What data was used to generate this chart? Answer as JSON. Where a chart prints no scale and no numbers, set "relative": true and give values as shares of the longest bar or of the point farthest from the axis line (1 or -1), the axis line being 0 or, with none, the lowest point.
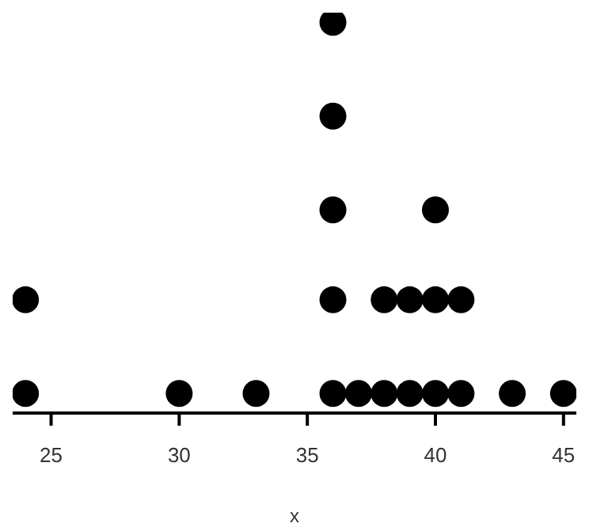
{
  "chart_data": {
    "type": "scatter",
    "xlabel": "x",
    "xlim": [
      23.5,
      45.5
    ],
    "xticks": [
      25,
      30,
      35,
      40,
      45
    ],
    "relative": true,
    "grid": false,
    "legend": false,
    "marker": "circle",
    "series": [
      {
        "color": "#000000",
        "x": [
          24,
          24,
          30,
          33,
          36,
          36,
          36,
          36,
          36,
          37,
          38,
          38,
          39,
          39,
          40,
          40,
          40,
          41,
          41,
          43,
          45
        ],
        "values": [
          0.05,
          0.29,
          0.05,
          0.05,
          0.05,
          0.29,
          0.52,
          0.76,
          1,
          0.05,
          0.05,
          0.29,
          0.05,
          0.29,
          0.05,
          0.29,
          0.52,
          0.05,
          0.29,
          0.05,
          0.05
        ]
      }
    ]
  }
}
